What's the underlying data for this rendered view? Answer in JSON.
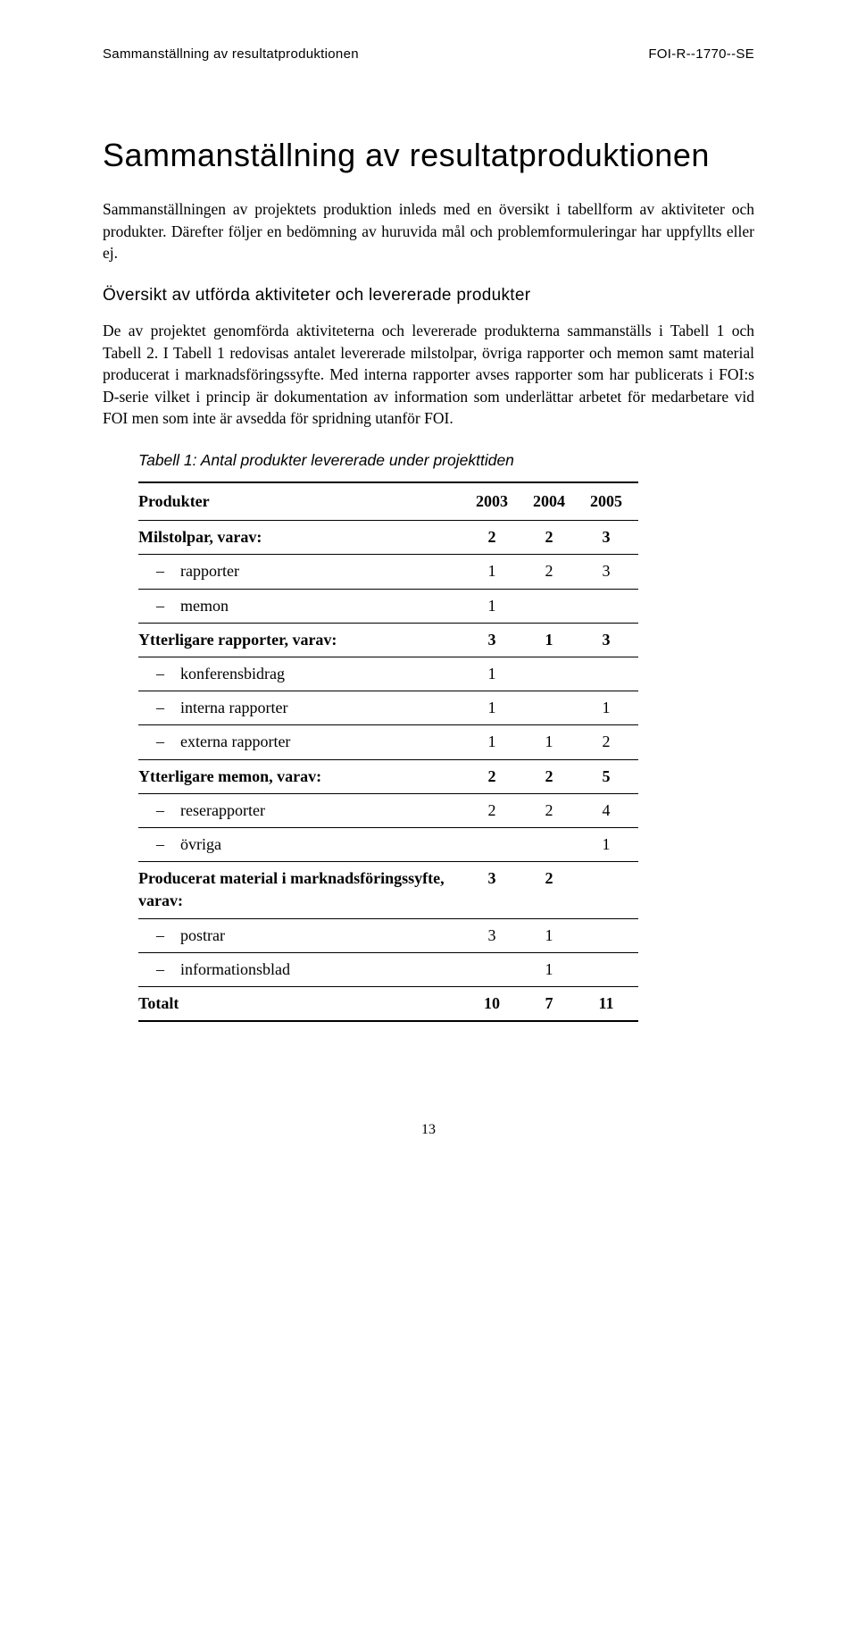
{
  "header": {
    "left": "Sammanställning av resultatproduktionen",
    "right": "FOI-R--1770--SE"
  },
  "title": "Sammanställning av resultatproduktionen",
  "paragraph1": "Sammanställningen av projektets produktion inleds med en översikt i tabellform av aktiviteter och produkter. Därefter följer en bedömning av huruvida mål och problemformuleringar har uppfyllts eller ej.",
  "section_heading": "Översikt av utförda aktiviteter och levererade produkter",
  "paragraph2": "De av projektet genomförda aktiviteterna och levererade produkterna sammanställs i Tabell 1 och Tabell 2. I Tabell 1 redovisas antalet levererade milstolpar, övriga rapporter och memon samt material producerat i marknadsföringssyfte. Med interna rapporter avses rapporter som har publicerats i FOI:s D-serie vilket i princip är dokumentation av information som underlättar arbetet för medarbetare vid FOI men som inte är avsedda för spridning utanför FOI.",
  "table": {
    "caption": "Tabell 1: Antal produkter levererade under projekttiden",
    "columns": [
      "Produkter",
      "2003",
      "2004",
      "2005"
    ],
    "rows": [
      {
        "label": "Milstolpar, varav:",
        "bold": true,
        "indent": false,
        "v": [
          "2",
          "2",
          "3"
        ]
      },
      {
        "label": "– rapporter",
        "bold": false,
        "indent": true,
        "v": [
          "1",
          "2",
          "3"
        ]
      },
      {
        "label": "– memon",
        "bold": false,
        "indent": true,
        "v": [
          "1",
          "",
          ""
        ]
      },
      {
        "label": "Ytterligare rapporter, varav:",
        "bold": true,
        "indent": false,
        "v": [
          "3",
          "1",
          "3"
        ]
      },
      {
        "label": "– konferensbidrag",
        "bold": false,
        "indent": true,
        "v": [
          "1",
          "",
          ""
        ]
      },
      {
        "label": "– interna rapporter",
        "bold": false,
        "indent": true,
        "v": [
          "1",
          "",
          "1"
        ]
      },
      {
        "label": "– externa rapporter",
        "bold": false,
        "indent": true,
        "v": [
          "1",
          "1",
          "2"
        ]
      },
      {
        "label": "Ytterligare memon, varav:",
        "bold": true,
        "indent": false,
        "v": [
          "2",
          "2",
          "5"
        ]
      },
      {
        "label": "– reserapporter",
        "bold": false,
        "indent": true,
        "v": [
          "2",
          "2",
          "4"
        ]
      },
      {
        "label": "– övriga",
        "bold": false,
        "indent": true,
        "v": [
          "",
          "",
          "1"
        ]
      },
      {
        "label": "Producerat material i marknadsföringssyfte, varav:",
        "bold": true,
        "indent": false,
        "v": [
          "3",
          "2",
          ""
        ]
      },
      {
        "label": "– postrar",
        "bold": false,
        "indent": true,
        "v": [
          "3",
          "1",
          ""
        ]
      },
      {
        "label": "– informationsblad",
        "bold": false,
        "indent": true,
        "v": [
          "",
          "1",
          ""
        ]
      },
      {
        "label": "Totalt",
        "bold": true,
        "indent": false,
        "v": [
          "10",
          "7",
          "11"
        ]
      }
    ]
  },
  "page_number": "13"
}
